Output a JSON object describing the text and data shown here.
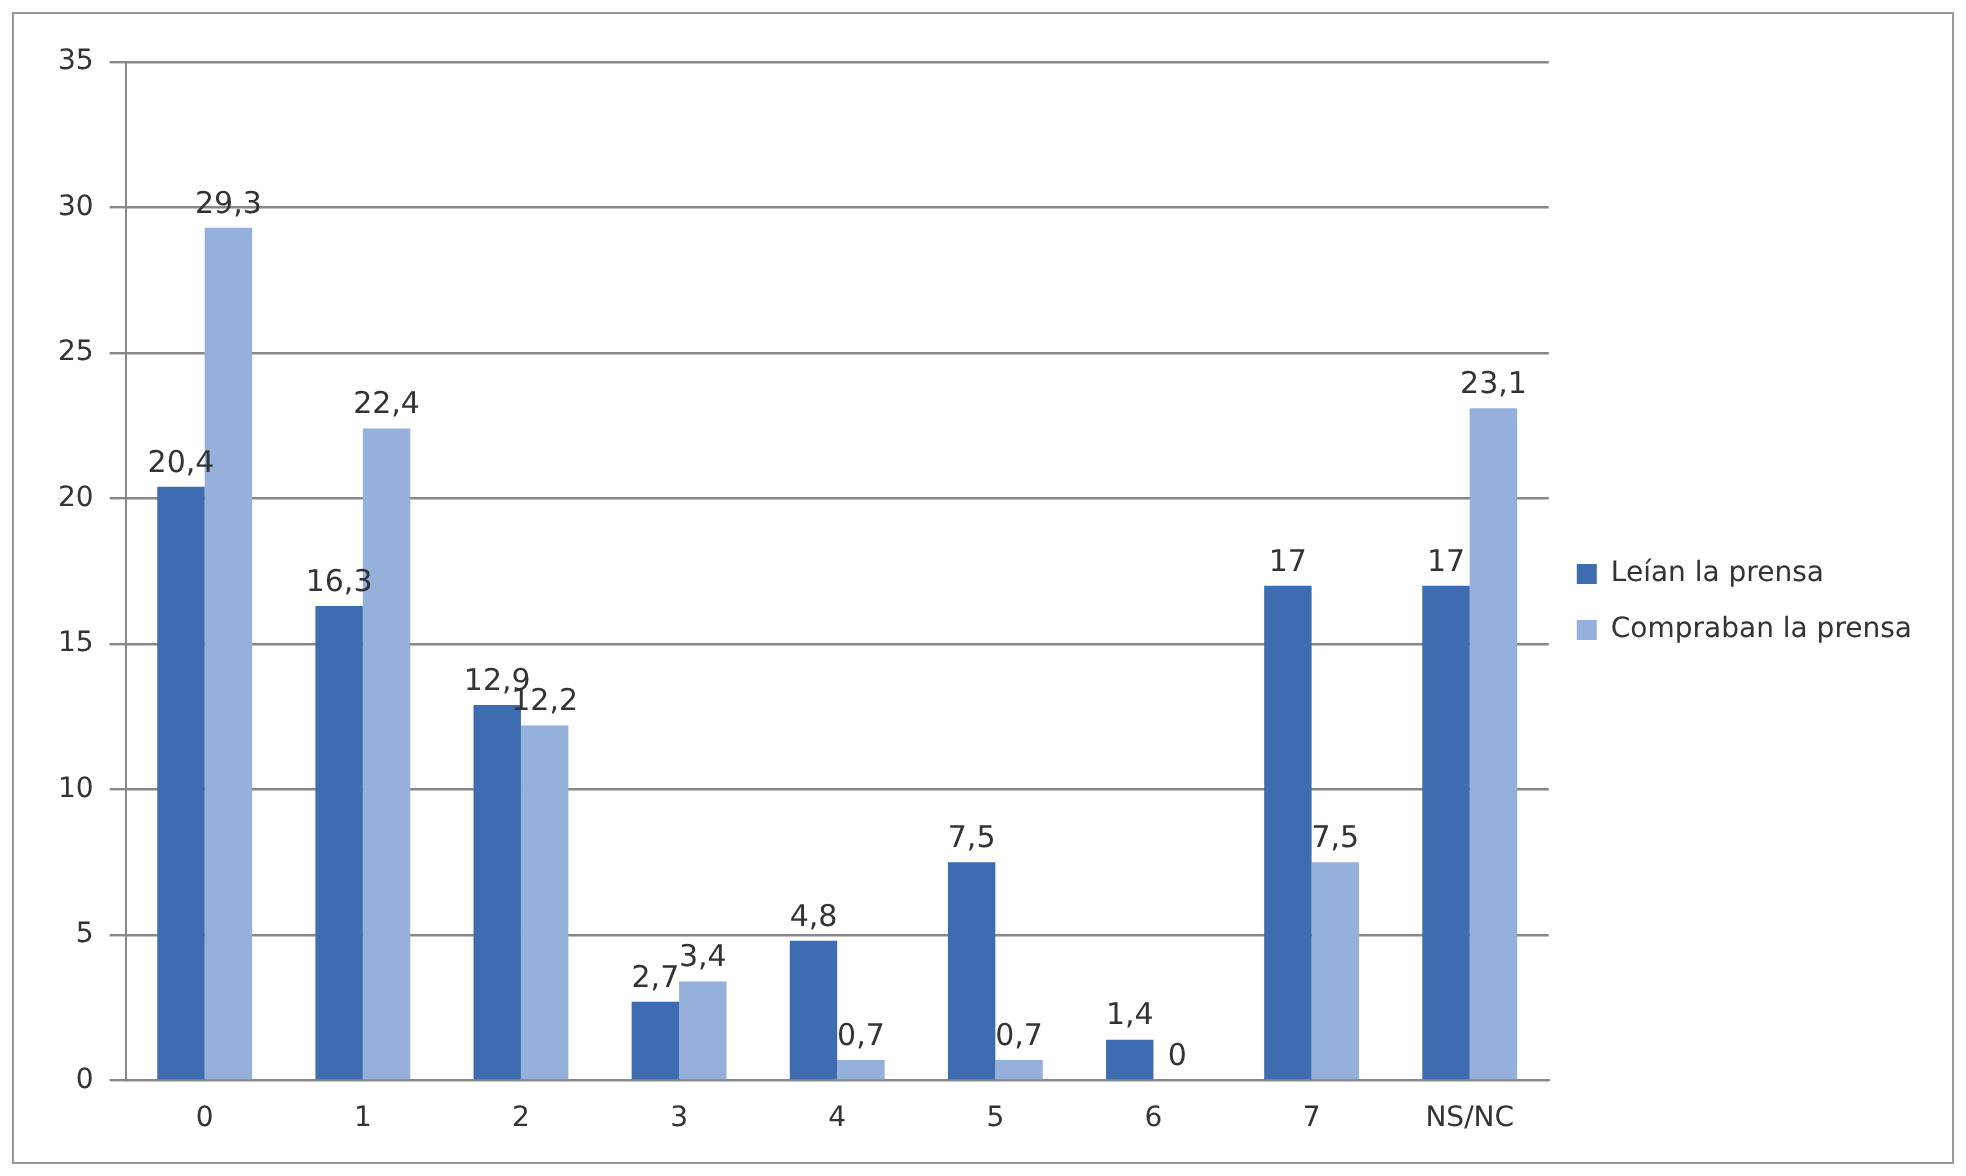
{
  "chart_data": {
    "type": "bar",
    "categories": [
      "0",
      "1",
      "2",
      "3",
      "4",
      "5",
      "6",
      "7",
      "NS/NC"
    ],
    "series": [
      {
        "name": "Leían la prensa",
        "color": "#3d6db0",
        "values": [
          20.4,
          16.3,
          12.9,
          2.7,
          4.8,
          7.5,
          1.4,
          17,
          17
        ],
        "value_labels": [
          "20,4",
          "16,3",
          "12,9",
          "2,7",
          "4,8",
          "7,5",
          "1,4",
          "17",
          "17"
        ]
      },
      {
        "name": "Compraban la prensa",
        "color": "#94b0db",
        "values": [
          29.3,
          22.4,
          12.2,
          3.4,
          0.7,
          0.7,
          0,
          7.5,
          23.1
        ],
        "value_labels": [
          "29,3",
          "22,4",
          "12,2",
          "3,4",
          "0,7",
          "0,7",
          "0",
          "7,5",
          "23,1"
        ]
      }
    ],
    "ylim": [
      0,
      35
    ],
    "yticks": [
      0,
      5,
      10,
      15,
      20,
      25,
      30,
      35
    ],
    "grid": "y",
    "legend": "right"
  }
}
